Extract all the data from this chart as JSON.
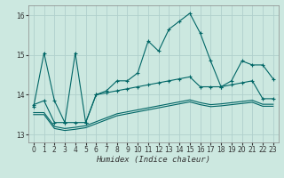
{
  "xlabel": "Humidex (Indice chaleur)",
  "xlim": [
    -0.5,
    23.5
  ],
  "ylim": [
    12.8,
    16.25
  ],
  "yticks": [
    13,
    14,
    15,
    16
  ],
  "xticks": [
    0,
    1,
    2,
    3,
    4,
    5,
    6,
    7,
    8,
    9,
    10,
    11,
    12,
    13,
    14,
    15,
    16,
    17,
    18,
    19,
    20,
    21,
    22,
    23
  ],
  "bg_color": "#cce8e0",
  "line_color": "#006666",
  "grid_color": "#b0d0cc",
  "series1": [
    13.7,
    15.05,
    13.85,
    13.3,
    15.05,
    13.3,
    14.0,
    14.1,
    14.35,
    14.35,
    14.55,
    15.35,
    15.1,
    15.65,
    15.85,
    16.05,
    15.55,
    14.85,
    14.2,
    14.35,
    14.85,
    14.75,
    14.75,
    14.4
  ],
  "series2": [
    13.75,
    13.85,
    13.3,
    13.3,
    13.3,
    13.3,
    14.0,
    14.05,
    14.1,
    14.15,
    14.2,
    14.25,
    14.3,
    14.35,
    14.4,
    14.45,
    14.2,
    14.2,
    14.2,
    14.25,
    14.3,
    14.35,
    13.9,
    13.9
  ],
  "series3": [
    13.55,
    13.55,
    13.2,
    13.15,
    13.18,
    13.22,
    13.32,
    13.42,
    13.52,
    13.57,
    13.62,
    13.67,
    13.72,
    13.77,
    13.82,
    13.87,
    13.8,
    13.75,
    13.77,
    13.8,
    13.83,
    13.86,
    13.76,
    13.76
  ],
  "series4": [
    13.5,
    13.5,
    13.15,
    13.1,
    13.13,
    13.17,
    13.27,
    13.37,
    13.47,
    13.52,
    13.57,
    13.62,
    13.67,
    13.72,
    13.77,
    13.82,
    13.75,
    13.7,
    13.72,
    13.75,
    13.78,
    13.81,
    13.71,
    13.71
  ]
}
